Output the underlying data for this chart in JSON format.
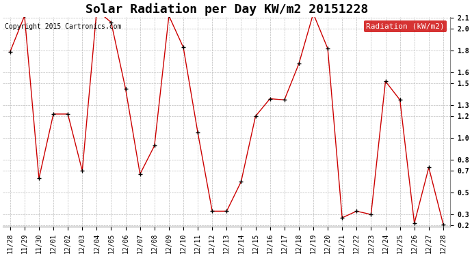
{
  "title": "Solar Radiation per Day KW/m2 20151228",
  "copyright": "Copyright 2015 Cartronics.com",
  "legend_label": "Radiation (kW/m2)",
  "dates": [
    "11/28",
    "11/29",
    "11/30",
    "12/01",
    "12/02",
    "12/03",
    "12/04",
    "12/05",
    "12/06",
    "12/07",
    "12/08",
    "12/09",
    "12/10",
    "12/11",
    "12/12",
    "12/13",
    "12/14",
    "12/15",
    "12/16",
    "12/17",
    "12/18",
    "12/19",
    "12/20",
    "12/21",
    "12/22",
    "12/23",
    "12/24",
    "12/25",
    "12/26",
    "12/27",
    "12/28"
  ],
  "values": [
    1.79,
    2.12,
    0.63,
    1.22,
    1.22,
    0.7,
    2.17,
    2.06,
    1.45,
    0.67,
    0.93,
    2.12,
    1.83,
    1.05,
    0.33,
    0.33,
    0.6,
    1.2,
    1.36,
    1.35,
    1.68,
    2.14,
    1.82,
    0.27,
    0.33,
    0.3,
    1.52,
    1.35,
    0.22,
    0.73,
    0.21
  ],
  "ylim_min": 0.2,
  "ylim_max": 2.1,
  "yticks": [
    0.2,
    0.3,
    0.5,
    0.7,
    0.8,
    1.0,
    1.2,
    1.3,
    1.5,
    1.6,
    1.8,
    2.0,
    2.1
  ],
  "line_color": "#cc0000",
  "marker_color": "#000000",
  "bg_color": "#ffffff",
  "grid_color": "#bbbbbb",
  "legend_bg": "#cc0000",
  "legend_text_color": "#ffffff",
  "title_fontsize": 13,
  "tick_fontsize": 7,
  "copyright_fontsize": 7,
  "legend_fontsize": 8
}
